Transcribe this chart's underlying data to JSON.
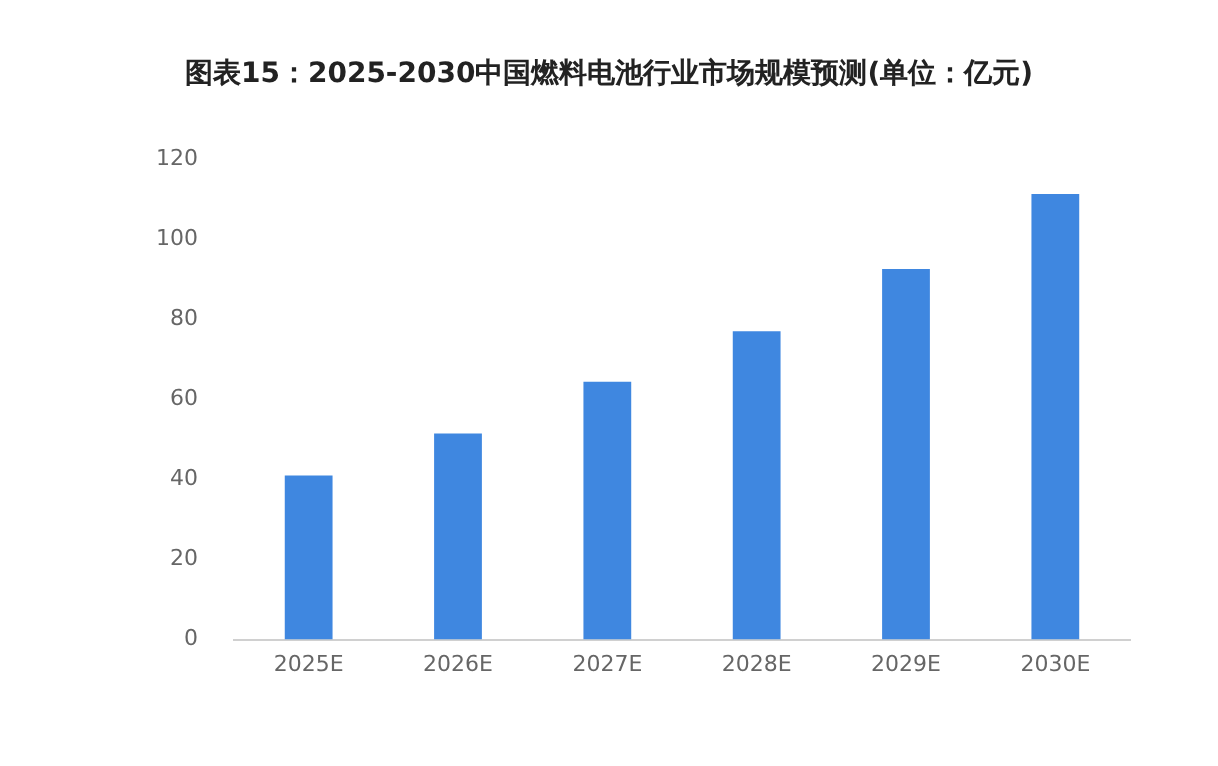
{
  "chart_data": {
    "type": "bar",
    "title": "图表15：2025-2030中国燃料电池行业市场规模预测(单位：亿元)",
    "categories": [
      "2025E",
      "2026E",
      "2027E",
      "2028E",
      "2029E",
      "2030E"
    ],
    "values": [
      41,
      51.5,
      64.4,
      77,
      92.6,
      111.3
    ],
    "color": "#3f87e0",
    "ylim": [
      0,
      120
    ],
    "yticks": [
      0,
      20,
      40,
      60,
      80,
      100,
      120
    ],
    "grid": false,
    "legend": false
  }
}
